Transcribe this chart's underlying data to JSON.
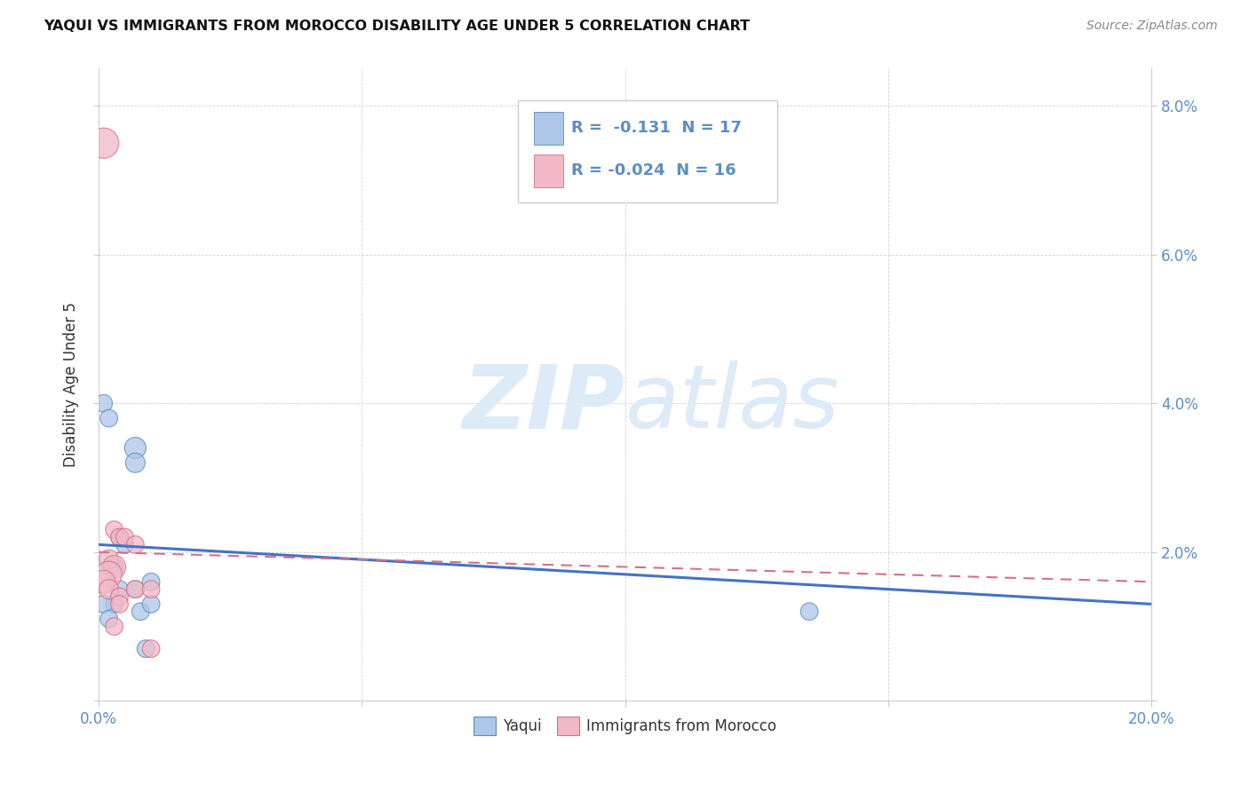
{
  "title": "YAQUI VS IMMIGRANTS FROM MOROCCO DISABILITY AGE UNDER 5 CORRELATION CHART",
  "source": "Source: ZipAtlas.com",
  "ylabel": "Disability Age Under 5",
  "xlim": [
    0.0,
    0.2
  ],
  "ylim": [
    0.0,
    0.085
  ],
  "xticks": [
    0.0,
    0.05,
    0.1,
    0.15,
    0.2
  ],
  "xtick_labels": [
    "0.0%",
    "",
    "",
    "",
    "20.0%"
  ],
  "yticks": [
    0.0,
    0.02,
    0.04,
    0.06,
    0.08
  ],
  "ytick_labels_left": [
    "",
    "",
    "",
    "",
    ""
  ],
  "ytick_labels_right": [
    "",
    "2.0%",
    "4.0%",
    "6.0%",
    "8.0%"
  ],
  "yaqui_color": "#aec6e8",
  "morocco_color": "#f2b8c6",
  "yaqui_edge_color": "#5b8ec4",
  "morocco_edge_color": "#d4708a",
  "yaqui_line_color": "#4472c4",
  "morocco_line_color": "#d4708a",
  "tick_color": "#5b8ec4",
  "watermark_color": "#ddeaf7",
  "yaqui_points": [
    [
      0.001,
      0.04
    ],
    [
      0.002,
      0.038
    ],
    [
      0.004,
      0.022
    ],
    [
      0.005,
      0.021
    ],
    [
      0.007,
      0.034
    ],
    [
      0.007,
      0.032
    ],
    [
      0.003,
      0.018
    ],
    [
      0.004,
      0.015
    ],
    [
      0.003,
      0.013
    ],
    [
      0.001,
      0.013
    ],
    [
      0.002,
      0.011
    ],
    [
      0.007,
      0.015
    ],
    [
      0.008,
      0.012
    ],
    [
      0.01,
      0.016
    ],
    [
      0.01,
      0.013
    ],
    [
      0.135,
      0.012
    ],
    [
      0.009,
      0.007
    ]
  ],
  "morocco_points": [
    [
      0.001,
      0.075
    ],
    [
      0.003,
      0.023
    ],
    [
      0.004,
      0.022
    ],
    [
      0.002,
      0.019
    ],
    [
      0.005,
      0.022
    ],
    [
      0.003,
      0.018
    ],
    [
      0.002,
      0.017
    ],
    [
      0.001,
      0.016
    ],
    [
      0.002,
      0.015
    ],
    [
      0.004,
      0.014
    ],
    [
      0.004,
      0.013
    ],
    [
      0.003,
      0.01
    ],
    [
      0.007,
      0.021
    ],
    [
      0.007,
      0.015
    ],
    [
      0.01,
      0.015
    ],
    [
      0.01,
      0.007
    ]
  ],
  "yaqui_sizes": [
    200,
    200,
    200,
    200,
    300,
    250,
    200,
    200,
    200,
    200,
    200,
    200,
    200,
    200,
    200,
    200,
    200
  ],
  "morocco_sizes": [
    600,
    200,
    200,
    250,
    200,
    350,
    450,
    350,
    250,
    200,
    200,
    200,
    200,
    200,
    200,
    200
  ],
  "yaqui_reg": [
    0.0,
    0.2,
    0.021,
    0.013
  ],
  "morocco_reg": [
    0.0,
    0.2,
    0.02,
    0.016
  ]
}
